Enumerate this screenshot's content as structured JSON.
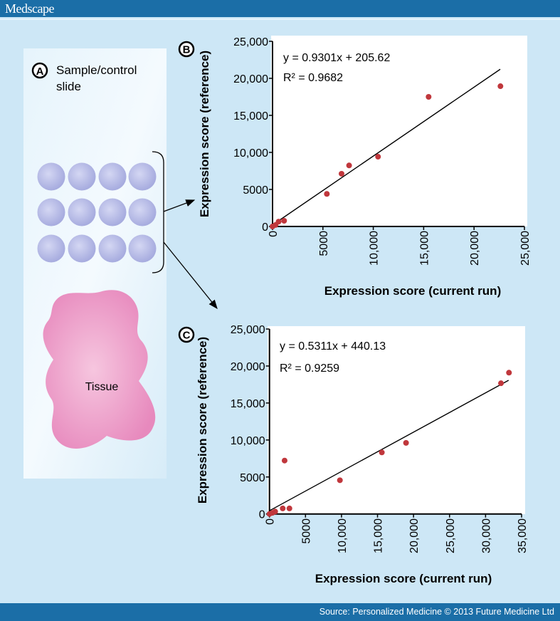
{
  "header": {
    "brand": "Medscape"
  },
  "footer": {
    "source": "Source: Personalized Medicine © 2013 Future Medicine Ltd"
  },
  "panel_a": {
    "letter": "A",
    "title_line1": "Sample/control",
    "title_line2": "slide",
    "tissue_label": "Tissue",
    "spot_color": "#b9bde9",
    "tissue_color": "#ec9fcb"
  },
  "colors": {
    "point": "#c0373c",
    "line": "#000000",
    "plot_bg": "#ffffff"
  },
  "chart_data": [
    {
      "id": "B",
      "letter": "B",
      "type": "scatter",
      "xlabel": "Expression score (current run)",
      "ylabel": "Expression score (reference)",
      "xlim": [
        0,
        25000
      ],
      "ylim": [
        0,
        25000
      ],
      "xticks": [
        "0",
        "5000",
        "10,000",
        "15,000",
        "20,000",
        "25,000"
      ],
      "yticks": [
        "0",
        "5000",
        "10,000",
        "15,000",
        "20,000",
        "25,000"
      ],
      "equation": "y = 0.9301x + 205.62",
      "r2": "R² = 0.9682",
      "fit": {
        "slope": 0.9301,
        "intercept": 205.62,
        "x_range": [
          0,
          22600
        ]
      },
      "points": [
        [
          0,
          0
        ],
        [
          300,
          200
        ],
        [
          600,
          650
        ],
        [
          1150,
          770
        ],
        [
          5390,
          4400
        ],
        [
          6850,
          7120
        ],
        [
          7600,
          8240
        ],
        [
          10470,
          9420
        ],
        [
          15490,
          17500
        ],
        [
          22620,
          18940
        ]
      ]
    },
    {
      "id": "C",
      "letter": "C",
      "type": "scatter",
      "xlabel": "Expression score (current run)",
      "ylabel": "Expression score (reference)",
      "xlim": [
        0,
        35000
      ],
      "ylim": [
        0,
        25000
      ],
      "xticks": [
        "0",
        "5000",
        "10,000",
        "15,000",
        "20,000",
        "25,000",
        "30,000",
        "35,000"
      ],
      "yticks": [
        "0",
        "5000",
        "10,000",
        "15,000",
        "20,000",
        "25,000"
      ],
      "equation": "y = 0.5311x + 440.13",
      "r2": "R² = 0.9259",
      "fit": {
        "slope": 0.5311,
        "intercept": 440.13,
        "x_range": [
          0,
          33200
        ]
      },
      "points": [
        [
          0,
          0
        ],
        [
          400,
          150
        ],
        [
          790,
          330
        ],
        [
          1840,
          750
        ],
        [
          2770,
          750
        ],
        [
          2100,
          7220
        ],
        [
          9780,
          4560
        ],
        [
          15600,
          8320
        ],
        [
          18960,
          9610
        ],
        [
          32140,
          17670
        ],
        [
          33250,
          19100
        ]
      ]
    }
  ]
}
